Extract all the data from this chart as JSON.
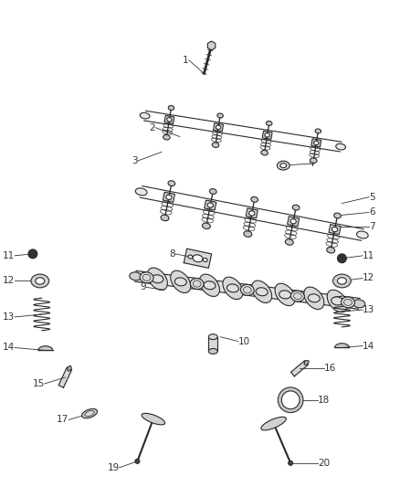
{
  "background_color": "#ffffff",
  "line_color": "#2a2a2a",
  "label_color": "#333333",
  "label_fs": 7.5,
  "figsize": [
    4.38,
    5.33
  ],
  "dpi": 100
}
